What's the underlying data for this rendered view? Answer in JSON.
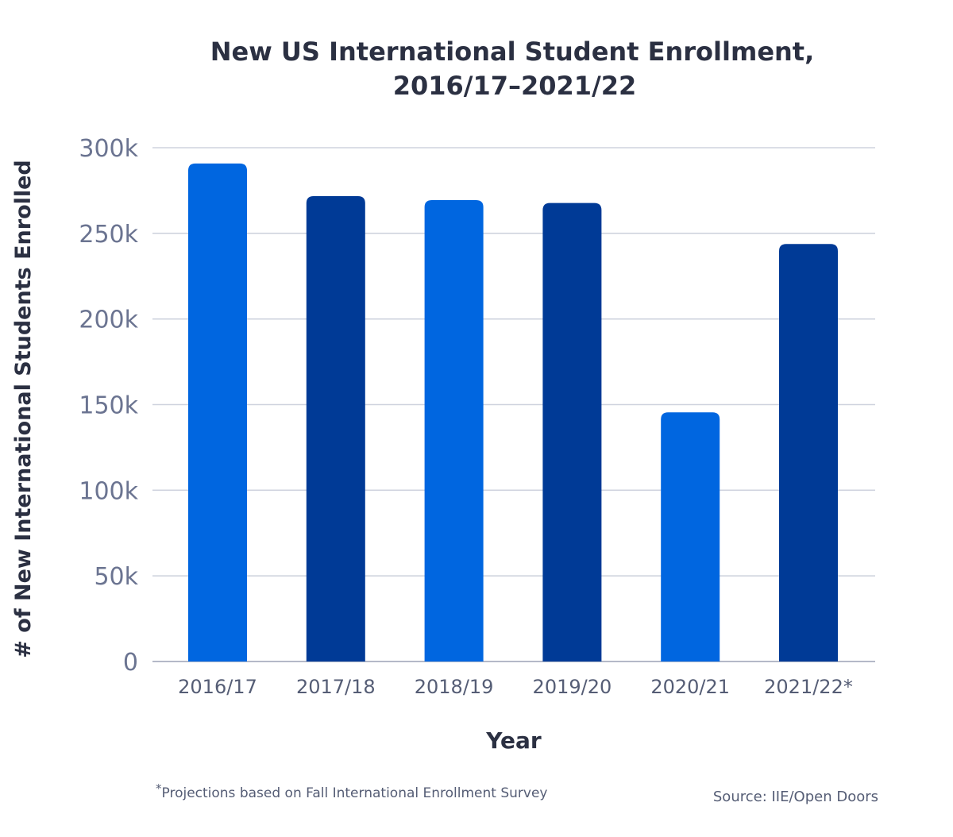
{
  "chart_data": {
    "type": "bar",
    "title_line1": "New US International Student Enrollment,",
    "title_line2": "2016/17–2021/22",
    "xlabel": "Year",
    "ylabel": "# of New International Students Enrolled",
    "categories": [
      "2016/17",
      "2017/18",
      "2018/19",
      "2019/20",
      "2020/21",
      "2021/22*"
    ],
    "values": [
      290800,
      271700,
      269400,
      267700,
      145500,
      243800
    ],
    "bar_colors": [
      "#0066e0",
      "#003a96",
      "#0066e0",
      "#003a96",
      "#0066e0",
      "#003a96"
    ],
    "ylim": [
      0,
      300000
    ],
    "yticks": [
      0,
      50000,
      100000,
      150000,
      200000,
      250000,
      300000
    ],
    "ytick_labels": [
      "0",
      "50k",
      "100k",
      "150k",
      "200k",
      "250k",
      "300k"
    ],
    "grid": true,
    "footnote_mark": "*",
    "footnote_text": "Projections based on Fall International Enrollment Survey",
    "source": "Source: IIE/Open Doors"
  }
}
